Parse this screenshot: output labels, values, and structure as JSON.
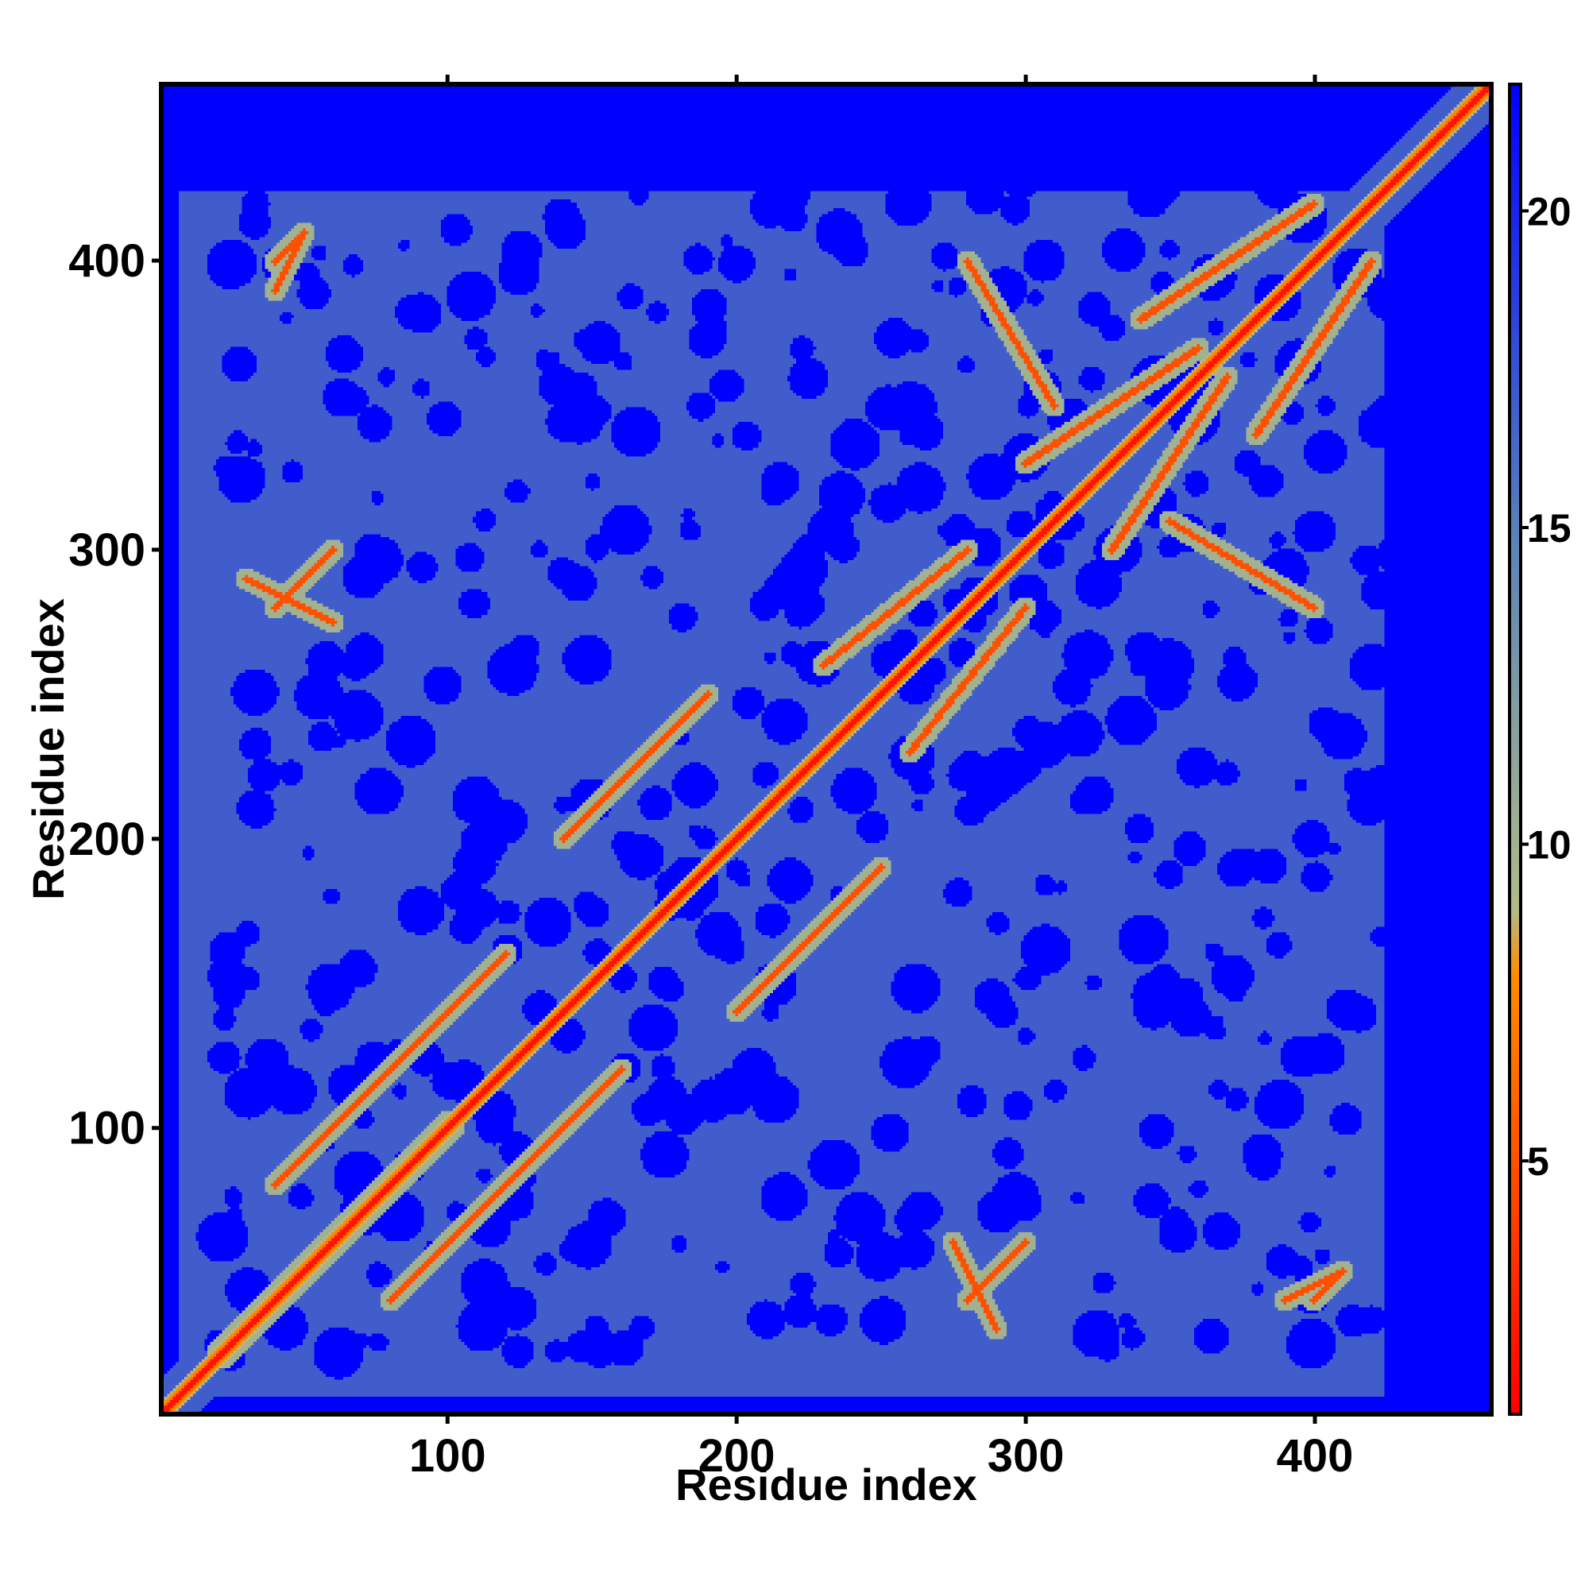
{
  "chart_data": {
    "type": "heatmap",
    "title": "",
    "xlabel": "Residue index",
    "ylabel": "Residue index",
    "xlim": [
      1,
      461
    ],
    "ylim": [
      1,
      461
    ],
    "x_ticks": [
      100,
      200,
      300,
      400
    ],
    "y_ticks": [
      100,
      200,
      300,
      400
    ],
    "x_tick_labels": [
      "100",
      "200",
      "300",
      "400"
    ],
    "y_tick_labels": [
      "100",
      "200",
      "300",
      "400"
    ],
    "matrix_size": 461,
    "colorbar": {
      "range": [
        1,
        22
      ],
      "ticks": [
        5,
        10,
        15,
        20
      ],
      "tick_labels": [
        "5",
        "10",
        "15",
        "20"
      ],
      "colors": [
        "#ff0000",
        "#ff8c00",
        "#b0bb88",
        "#5b82b8",
        "#0000ff"
      ],
      "stops": [
        1,
        8,
        9,
        15,
        22
      ]
    },
    "description_values": {
      "diagonal_value": 2,
      "background_value": 22,
      "protein_region_value": 17
    },
    "contact_bands": [
      {
        "i0": 20,
        "j0": 22,
        "i1": 100,
        "j1": 102
      },
      {
        "i0": 40,
        "j0": 80,
        "i1": 120,
        "j1": 160
      },
      {
        "i0": 140,
        "j0": 200,
        "i1": 190,
        "j1": 250
      },
      {
        "i0": 230,
        "j0": 260,
        "i1": 280,
        "j1": 300
      },
      {
        "i0": 300,
        "j0": 330,
        "i1": 360,
        "j1": 370
      },
      {
        "i0": 340,
        "j0": 380,
        "i1": 400,
        "j1": 420
      },
      {
        "i0": 30,
        "j0": 290,
        "i1": 60,
        "j1": 275
      },
      {
        "i0": 280,
        "j0": 40,
        "i1": 300,
        "j1": 60
      },
      {
        "i0": 210,
        "j0": 150,
        "i1": 250,
        "j1": 190
      },
      {
        "i0": 350,
        "j0": 310,
        "i1": 400,
        "j1": 280
      },
      {
        "i0": 40,
        "j0": 390,
        "i1": 50,
        "j1": 410
      },
      {
        "i0": 400,
        "j0": 40,
        "i1": 410,
        "j1": 50
      }
    ]
  }
}
